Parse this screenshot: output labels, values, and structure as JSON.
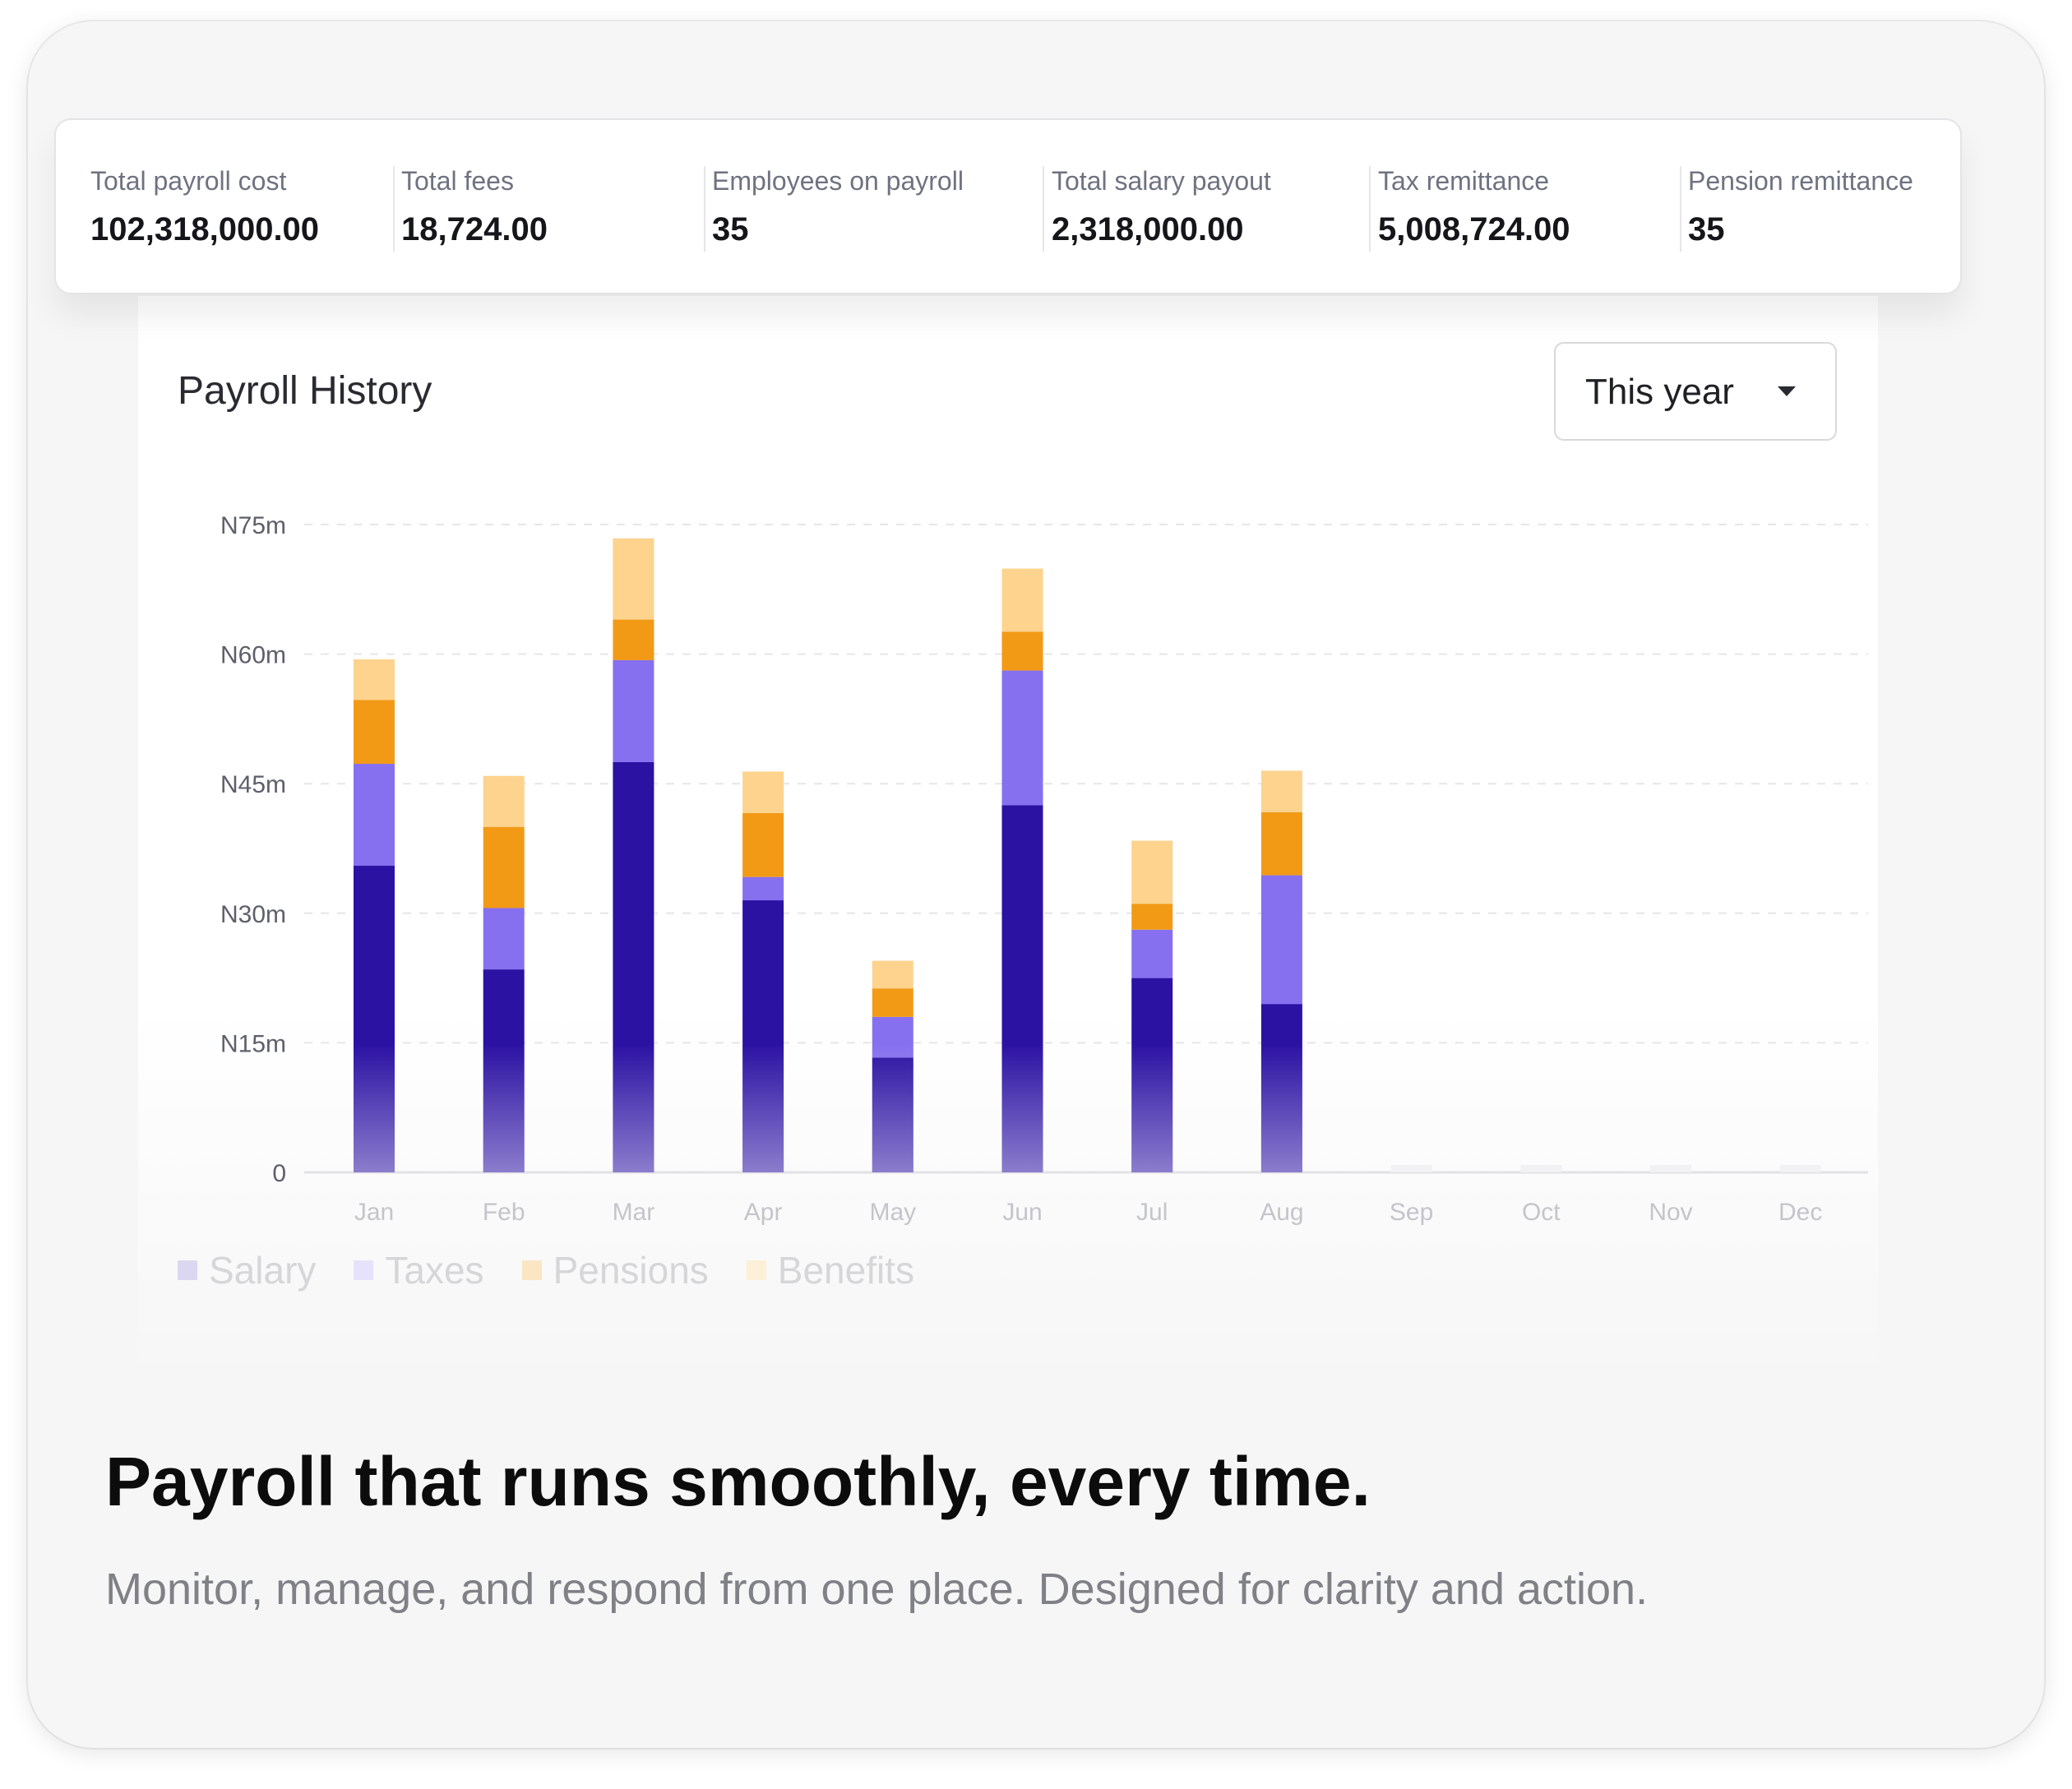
{
  "stats": [
    {
      "label": "Total payroll cost",
      "value": "102,318,000.00"
    },
    {
      "label": "Total fees",
      "value": "18,724.00"
    },
    {
      "label": "Employees on payroll",
      "value": "35"
    },
    {
      "label": "Total salary payout",
      "value": "2,318,000.00"
    },
    {
      "label": "Tax remittance",
      "value": "5,008,724.00"
    },
    {
      "label": "Pension remittance",
      "value": "35"
    }
  ],
  "chart_header": {
    "title": "Payroll History",
    "period": {
      "selected": "This year"
    }
  },
  "chart_data": {
    "type": "bar",
    "stacked": true,
    "y_unit_prefix": "N",
    "ylim": [
      0,
      75
    ],
    "yticks": [
      {
        "value": 0,
        "label": "0"
      },
      {
        "value": 15,
        "label": "N15m"
      },
      {
        "value": 30,
        "label": "N30m"
      },
      {
        "value": 45,
        "label": "N45m"
      },
      {
        "value": 60,
        "label": "N60m"
      },
      {
        "value": 75,
        "label": "N75m"
      }
    ],
    "grid": "dashed horizontal",
    "legend_position": "bottom-left",
    "categories": [
      "Jan",
      "Feb",
      "Mar",
      "Apr",
      "May",
      "Jun",
      "Jul",
      "Aug",
      "Sep",
      "Oct",
      "Nov",
      "Dec"
    ],
    "series": [
      {
        "name": "Salary",
        "color": "#2c12a3",
        "values": [
          35.5,
          23.5,
          47.5,
          31.5,
          13.3,
          42.5,
          22.5,
          19.5,
          0,
          0,
          0,
          0
        ]
      },
      {
        "name": "Taxes",
        "color": "#8670ef",
        "values": [
          11.8,
          7.1,
          11.8,
          2.7,
          4.7,
          15.6,
          5.6,
          14.9,
          0,
          0,
          0,
          0
        ]
      },
      {
        "name": "Pensions",
        "color": "#f29a16",
        "values": [
          7.4,
          9.4,
          4.7,
          7.4,
          3.3,
          4.5,
          3.0,
          7.3,
          0,
          0,
          0,
          0
        ]
      },
      {
        "name": "Benefits",
        "color": "#fdd38e",
        "values": [
          4.7,
          5.9,
          9.4,
          4.8,
          3.2,
          7.3,
          7.3,
          4.8,
          0,
          0,
          0,
          0
        ]
      }
    ]
  },
  "footer": {
    "headline": "Payroll that runs smoothly, every time.",
    "subtext": "Monitor, manage, and respond from one place. Designed for clarity and action."
  }
}
